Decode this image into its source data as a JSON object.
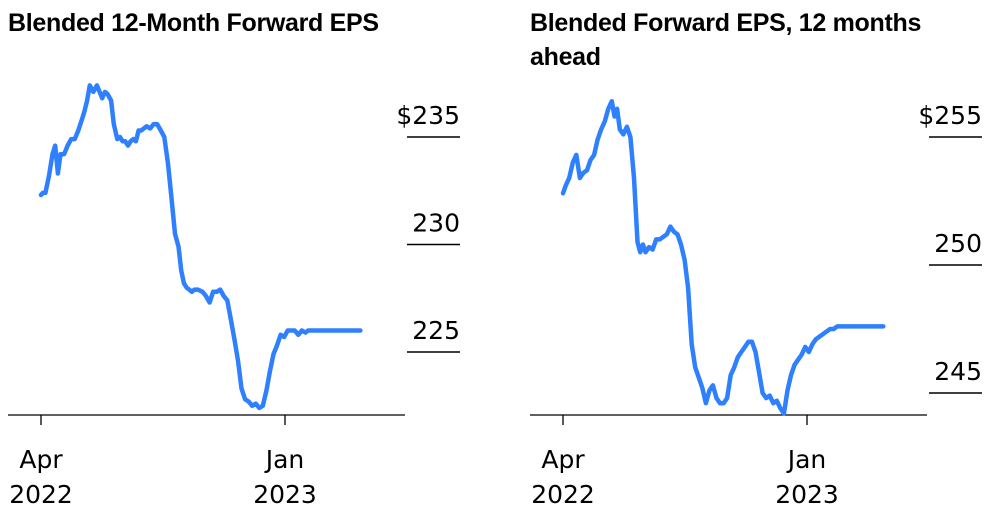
{
  "chart_data": [
    {
      "type": "line",
      "title": "Blended 12-Month Forward EPS",
      "xlabel": "",
      "ylabel": "",
      "x_ticks": [
        {
          "date": "2022-04-01",
          "line1": "Apr",
          "line2": "2022"
        },
        {
          "date": "2023-01-01",
          "line1": "Jan",
          "line2": "2023"
        }
      ],
      "y_ticks": [
        {
          "value": 235,
          "label": "$235"
        },
        {
          "value": 230,
          "label": "230"
        },
        {
          "value": 225,
          "label": "225"
        }
      ],
      "ylim": [
        221.9,
        238.0
      ],
      "xlim": [
        "2022-03-01",
        "2023-04-30"
      ],
      "grid": false,
      "series_color": "#2f80ff",
      "series": [
        {
          "x": [
            "2022-04-01",
            "2022-04-03",
            "2022-04-06",
            "2022-04-10",
            "2022-04-14",
            "2022-04-17",
            "2022-04-20",
            "2022-04-23",
            "2022-04-27",
            "2022-05-01",
            "2022-05-05",
            "2022-05-09",
            "2022-05-13",
            "2022-05-17",
            "2022-05-20",
            "2022-05-23",
            "2022-05-26",
            "2022-05-30",
            "2022-06-03",
            "2022-06-06",
            "2022-06-09",
            "2022-06-12",
            "2022-06-15",
            "2022-06-19",
            "2022-06-22",
            "2022-06-26",
            "2022-06-29",
            "2022-07-02",
            "2022-07-05",
            "2022-07-08",
            "2022-07-11",
            "2022-07-14",
            "2022-07-17",
            "2022-07-20",
            "2022-07-23",
            "2022-07-26",
            "2022-07-29",
            "2022-08-02",
            "2022-08-06",
            "2022-08-10",
            "2022-08-14",
            "2022-08-18",
            "2022-08-22",
            "2022-08-26",
            "2022-08-30",
            "2022-09-03",
            "2022-09-06",
            "2022-09-09",
            "2022-09-12",
            "2022-09-15",
            "2022-09-18",
            "2022-09-21",
            "2022-09-25",
            "2022-09-30",
            "2022-10-04",
            "2022-10-08",
            "2022-10-12",
            "2022-10-16",
            "2022-10-20",
            "2022-10-24",
            "2022-10-28",
            "2022-11-01",
            "2022-11-05",
            "2022-11-09",
            "2022-11-13",
            "2022-11-17",
            "2022-11-21",
            "2022-11-25",
            "2022-11-29",
            "2022-12-03",
            "2022-12-07",
            "2022-12-11",
            "2022-12-15",
            "2022-12-19",
            "2022-12-23",
            "2022-12-27",
            "2022-12-31",
            "2023-01-04",
            "2023-01-08",
            "2023-01-12",
            "2023-01-16",
            "2023-01-20",
            "2023-01-24",
            "2023-01-27",
            "2023-01-30",
            "2023-02-03",
            "2023-02-07",
            "2023-02-11",
            "2023-02-15",
            "2023-02-19",
            "2023-02-23",
            "2023-02-27",
            "2023-03-03",
            "2023-03-07",
            "2023-03-11",
            "2023-03-15",
            "2023-03-19",
            "2023-03-23",
            "2023-03-27"
          ],
          "y": [
            232.3,
            232.4,
            232.4,
            233.2,
            234.2,
            234.6,
            233.3,
            234.2,
            234.2,
            234.6,
            234.9,
            234.9,
            235.3,
            235.8,
            236.2,
            236.7,
            237.4,
            237.1,
            237.4,
            237.1,
            236.8,
            237.1,
            237.0,
            236.7,
            235.6,
            234.9,
            235.0,
            234.8,
            234.8,
            234.6,
            234.8,
            234.9,
            234.8,
            235.3,
            235.3,
            235.4,
            235.5,
            235.4,
            235.6,
            235.6,
            235.3,
            235.0,
            233.8,
            232.2,
            230.5,
            229.9,
            228.8,
            228.2,
            228.0,
            227.9,
            227.8,
            227.9,
            227.9,
            227.8,
            227.6,
            227.3,
            227.8,
            227.8,
            227.9,
            227.6,
            227.4,
            226.5,
            225.6,
            224.6,
            223.3,
            222.8,
            222.7,
            222.5,
            222.6,
            222.4,
            222.5,
            223.2,
            224.1,
            224.9,
            225.3,
            225.8,
            225.7,
            226.0,
            226.0,
            226.0,
            225.8,
            226.0,
            225.9,
            226.0,
            226.0,
            226.0,
            226.0,
            226.0,
            226.0,
            226.0,
            226.0,
            226.0,
            226.0,
            226.0,
            226.0,
            226.0,
            226.0,
            226.0,
            226.0
          ]
        }
      ]
    },
    {
      "type": "line",
      "title": "Blended Forward EPS, 12 months ahead",
      "xlabel": "",
      "ylabel": "",
      "x_ticks": [
        {
          "date": "2022-04-01",
          "line1": "Apr",
          "line2": "2022"
        },
        {
          "date": "2023-01-01",
          "line1": "Jan",
          "line2": "2023"
        }
      ],
      "y_ticks": [
        {
          "value": 255,
          "label": "$255"
        },
        {
          "value": 250,
          "label": "250"
        },
        {
          "value": 245,
          "label": "245"
        }
      ],
      "ylim": [
        243.8,
        257.0
      ],
      "xlim": [
        "2022-03-01",
        "2023-04-30"
      ],
      "grid": false,
      "series_color": "#2f80ff",
      "series": [
        {
          "x": [
            "2022-04-01",
            "2022-04-04",
            "2022-04-08",
            "2022-04-12",
            "2022-04-16",
            "2022-04-20",
            "2022-04-24",
            "2022-04-28",
            "2022-05-02",
            "2022-05-06",
            "2022-05-10",
            "2022-05-14",
            "2022-05-18",
            "2022-05-22",
            "2022-05-26",
            "2022-05-29",
            "2022-06-01",
            "2022-06-04",
            "2022-06-08",
            "2022-06-12",
            "2022-06-16",
            "2022-06-20",
            "2022-06-24",
            "2022-06-27",
            "2022-06-30",
            "2022-07-03",
            "2022-07-07",
            "2022-07-11",
            "2022-07-15",
            "2022-07-19",
            "2022-07-23",
            "2022-07-27",
            "2022-07-31",
            "2022-08-04",
            "2022-08-08",
            "2022-08-12",
            "2022-08-16",
            "2022-08-20",
            "2022-08-24",
            "2022-08-28",
            "2022-09-01",
            "2022-09-05",
            "2022-09-09",
            "2022-09-13",
            "2022-09-17",
            "2022-09-21",
            "2022-09-25",
            "2022-09-29",
            "2022-10-03",
            "2022-10-07",
            "2022-10-11",
            "2022-10-15",
            "2022-10-19",
            "2022-10-23",
            "2022-10-27",
            "2022-10-31",
            "2022-11-04",
            "2022-11-08",
            "2022-11-12",
            "2022-11-16",
            "2022-11-20",
            "2022-11-24",
            "2022-11-28",
            "2022-12-02",
            "2022-12-06",
            "2022-12-10",
            "2022-12-14",
            "2022-12-18",
            "2022-12-22",
            "2022-12-26",
            "2022-12-30",
            "2023-01-03",
            "2023-01-07",
            "2023-01-11",
            "2023-01-15",
            "2023-01-19",
            "2023-01-23",
            "2023-01-27",
            "2023-01-31",
            "2023-02-04",
            "2023-02-08",
            "2023-02-12",
            "2023-02-16",
            "2023-02-20",
            "2023-02-24",
            "2023-02-28",
            "2023-03-04",
            "2023-03-08",
            "2023-03-12",
            "2023-03-16",
            "2023-03-20",
            "2023-03-24",
            "2023-03-28"
          ],
          "y": [
            252.8,
            253.1,
            253.4,
            254.0,
            254.3,
            253.4,
            253.6,
            253.7,
            254.1,
            254.3,
            254.9,
            255.3,
            255.6,
            256.1,
            256.4,
            255.8,
            256.1,
            255.3,
            255.1,
            255.4,
            255.0,
            253.4,
            250.9,
            250.5,
            250.8,
            250.5,
            250.7,
            250.6,
            251.0,
            251.0,
            251.1,
            251.2,
            251.5,
            251.3,
            251.2,
            250.8,
            250.2,
            249.1,
            246.9,
            246.0,
            245.6,
            245.2,
            244.6,
            245.1,
            245.3,
            244.8,
            244.6,
            244.6,
            244.8,
            245.7,
            246.0,
            246.4,
            246.6,
            246.8,
            247.0,
            247.0,
            246.6,
            245.8,
            245.0,
            244.8,
            244.9,
            244.6,
            244.7,
            244.4,
            244.2,
            245.1,
            245.7,
            246.1,
            246.3,
            246.5,
            246.8,
            246.6,
            246.9,
            247.1,
            247.2,
            247.3,
            247.4,
            247.5,
            247.5,
            247.6,
            247.6,
            247.6,
            247.6,
            247.6,
            247.6,
            247.6,
            247.6,
            247.6,
            247.6,
            247.6,
            247.6,
            247.6,
            247.6
          ]
        }
      ]
    }
  ]
}
